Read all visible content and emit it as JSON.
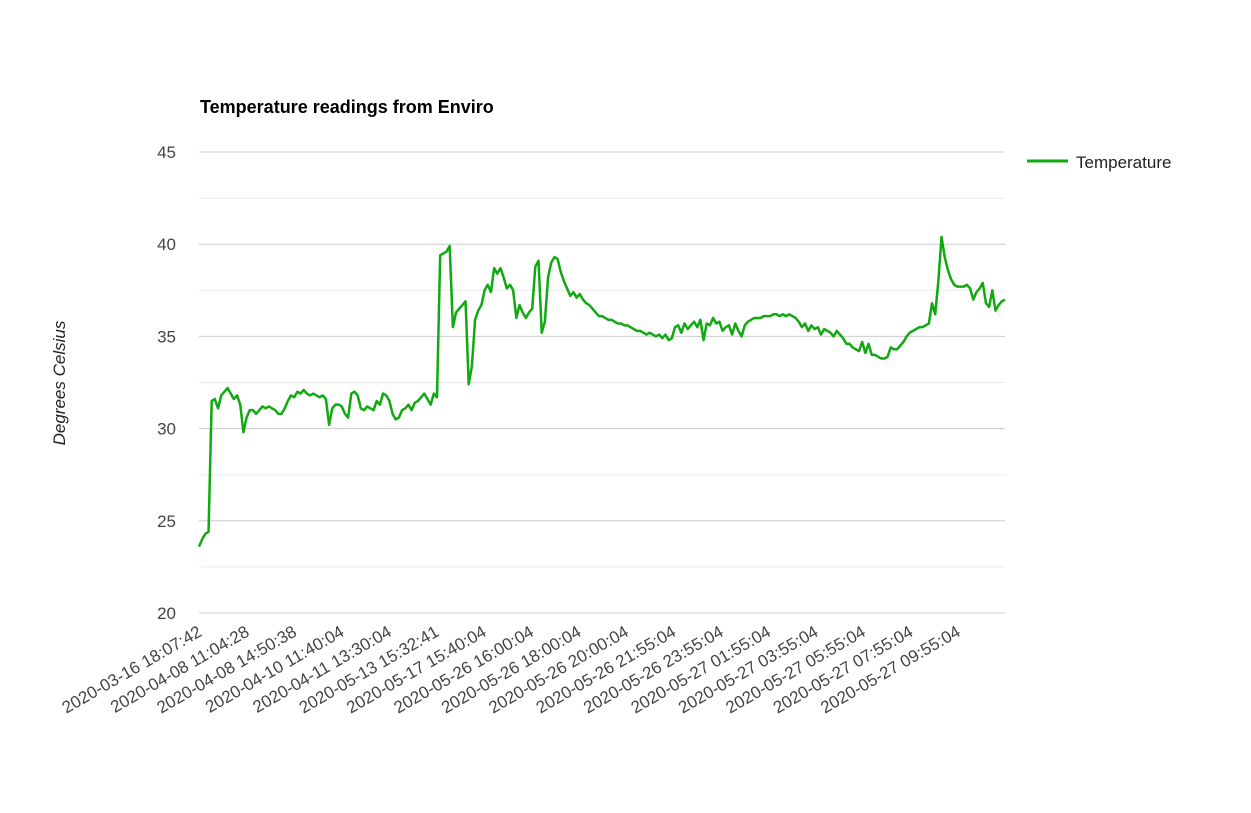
{
  "chart_data": {
    "type": "line",
    "title": "Temperature readings from Enviro",
    "ylabel": "Degrees Celsius",
    "xlabel": "",
    "ylim": [
      20,
      45
    ],
    "yticks": [
      20,
      25,
      30,
      35,
      40,
      45
    ],
    "grid": true,
    "minor_grid": true,
    "legend_position": "right",
    "colors": {
      "series": "#11a911",
      "grid_major": "#cccccc",
      "grid_minor": "#ebebeb"
    },
    "x_tick_labels": [
      "2020-03-16 18:07:42",
      "2020-04-08 11:04:28",
      "2020-04-08 14:50:38",
      "2020-04-10 11:40:04",
      "2020-04-11 13:30:04",
      "2020-05-13 15:32:41",
      "2020-05-17 15:40:04",
      "2020-05-26 16:00:04",
      "2020-05-26 18:00:04",
      "2020-05-26 20:00:04",
      "2020-05-26 21:55:04",
      "2020-05-26 23:55:04",
      "2020-05-27 01:55:04",
      "2020-05-27 03:55:04",
      "2020-05-27 05:55:04",
      "2020-05-27 07:55:04",
      "2020-05-27 09:55:04"
    ],
    "series": [
      {
        "name": "Temperature",
        "values": [
          23.6,
          24.0,
          24.3,
          24.4,
          31.5,
          31.6,
          31.1,
          31.8,
          32.0,
          32.2,
          31.9,
          31.6,
          31.8,
          31.3,
          29.8,
          30.6,
          31.0,
          31.0,
          30.8,
          31.0,
          31.2,
          31.1,
          31.2,
          31.1,
          31.0,
          30.8,
          30.8,
          31.1,
          31.5,
          31.8,
          31.7,
          32.0,
          31.9,
          32.1,
          31.9,
          31.8,
          31.9,
          31.8,
          31.7,
          31.8,
          31.6,
          30.2,
          31.1,
          31.3,
          31.3,
          31.2,
          30.8,
          30.6,
          31.9,
          32.0,
          31.8,
          31.1,
          31.0,
          31.2,
          31.1,
          31.0,
          31.5,
          31.3,
          31.9,
          31.8,
          31.5,
          30.8,
          30.5,
          30.6,
          31.0,
          31.1,
          31.3,
          31.0,
          31.4,
          31.5,
          31.7,
          31.9,
          31.6,
          31.3,
          31.9,
          31.7,
          39.4,
          39.5,
          39.6,
          39.9,
          35.5,
          36.3,
          36.5,
          36.7,
          36.9,
          32.4,
          33.4,
          35.9,
          36.4,
          36.7,
          37.5,
          37.8,
          37.4,
          38.7,
          38.4,
          38.7,
          38.2,
          37.6,
          37.8,
          37.5,
          36.0,
          36.7,
          36.3,
          36.0,
          36.3,
          36.5,
          38.8,
          39.1,
          35.2,
          35.8,
          38.2,
          39.0,
          39.3,
          39.2,
          38.5,
          38.0,
          37.6,
          37.2,
          37.4,
          37.1,
          37.3,
          37.0,
          36.8,
          36.7,
          36.5,
          36.3,
          36.1,
          36.1,
          36.0,
          35.9,
          35.9,
          35.8,
          35.7,
          35.7,
          35.6,
          35.6,
          35.5,
          35.4,
          35.3,
          35.3,
          35.2,
          35.1,
          35.2,
          35.1,
          35.0,
          35.1,
          34.9,
          35.1,
          34.8,
          34.9,
          35.5,
          35.6,
          35.2,
          35.7,
          35.4,
          35.6,
          35.8,
          35.5,
          35.9,
          34.8,
          35.7,
          35.6,
          36.0,
          35.7,
          35.8,
          35.3,
          35.5,
          35.6,
          35.1,
          35.7,
          35.3,
          35.0,
          35.6,
          35.8,
          35.9,
          36.0,
          36.0,
          36.0,
          36.1,
          36.1,
          36.1,
          36.2,
          36.2,
          36.1,
          36.2,
          36.1,
          36.2,
          36.1,
          36.0,
          35.8,
          35.5,
          35.7,
          35.3,
          35.6,
          35.4,
          35.5,
          35.1,
          35.4,
          35.3,
          35.2,
          35.0,
          35.3,
          35.1,
          34.9,
          34.6,
          34.6,
          34.4,
          34.3,
          34.2,
          34.7,
          34.1,
          34.6,
          34.0,
          34.0,
          33.9,
          33.8,
          33.8,
          33.9,
          34.4,
          34.3,
          34.3,
          34.5,
          34.7,
          35.0,
          35.2,
          35.3,
          35.4,
          35.5,
          35.5,
          35.6,
          35.7,
          36.8,
          36.2,
          38.0,
          40.4,
          39.3,
          38.6,
          38.1,
          37.8,
          37.7,
          37.7,
          37.7,
          37.8,
          37.6,
          37.0,
          37.4,
          37.6,
          37.9,
          36.8,
          36.6,
          37.5,
          36.4,
          36.7,
          36.9,
          37.0
        ]
      }
    ]
  }
}
